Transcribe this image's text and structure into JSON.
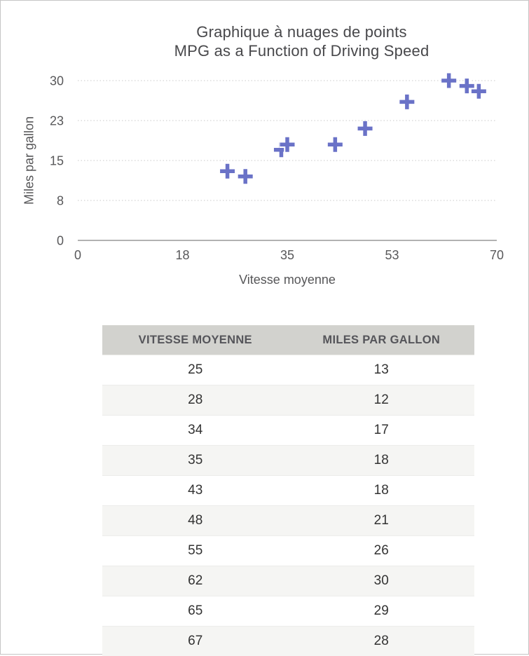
{
  "chart": {
    "title_line1": "Graphique à nuages de points",
    "title_line2": "MPG as a Function of Driving Speed",
    "x_axis_title": "Vitesse moyenne",
    "y_axis_title": "Miles par gallon"
  },
  "chart_data": {
    "type": "scatter",
    "title": "Graphique à nuages de points — MPG as a Function of Driving Speed",
    "xlabel": "Vitesse moyenne",
    "ylabel": "Miles par gallon",
    "x": [
      25,
      28,
      34,
      35,
      43,
      48,
      55,
      62,
      65,
      67
    ],
    "y": [
      13,
      12,
      17,
      18,
      18,
      21,
      26,
      30,
      29,
      28
    ],
    "xlim": [
      0,
      70
    ],
    "ylim": [
      0,
      30
    ],
    "x_ticks": [
      {
        "value": 0,
        "label": "0"
      },
      {
        "value": 17.5,
        "label": "18"
      },
      {
        "value": 35,
        "label": "35"
      },
      {
        "value": 52.5,
        "label": "53"
      },
      {
        "value": 70,
        "label": "70"
      }
    ],
    "y_ticks": [
      {
        "value": 0,
        "label": "0"
      },
      {
        "value": 7.5,
        "label": "8"
      },
      {
        "value": 15,
        "label": "15"
      },
      {
        "value": 22.5,
        "label": "23"
      },
      {
        "value": 30,
        "label": "30"
      }
    ],
    "grid": "horizontal dotted",
    "legend_position": "none",
    "marker": "plus",
    "marker_color": "#6A72C7"
  },
  "table": {
    "headers": [
      "VITESSE MOYENNE",
      "MILES PAR GALLON"
    ],
    "rows": [
      [
        "25",
        "13"
      ],
      [
        "28",
        "12"
      ],
      [
        "34",
        "17"
      ],
      [
        "35",
        "18"
      ],
      [
        "43",
        "18"
      ],
      [
        "48",
        "21"
      ],
      [
        "55",
        "26"
      ],
      [
        "62",
        "30"
      ],
      [
        "65",
        "29"
      ],
      [
        "67",
        "28"
      ]
    ]
  },
  "colors": {
    "marker": "#6A72C7",
    "marker_halo": "#FFFFFF",
    "axis_line": "#B2B2B2",
    "gridline": "#C9C9C9",
    "title_text": "#48484B",
    "axis_text": "#58585A",
    "table_header_bg": "#D2D2CE",
    "table_alt_row_bg": "#F5F5F3"
  }
}
